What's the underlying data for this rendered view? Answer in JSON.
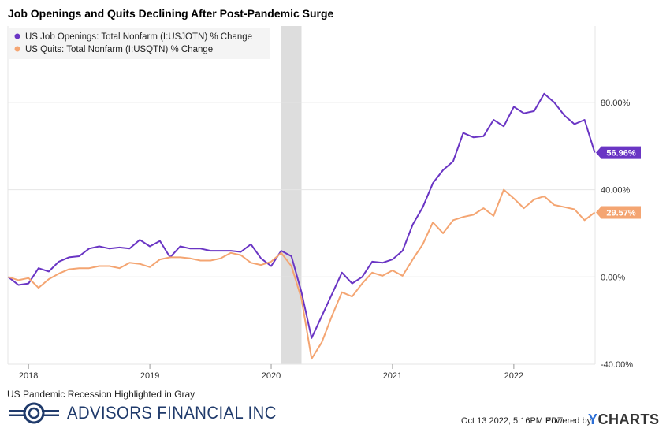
{
  "page": {
    "title": "Job Openings and Quits Declining After Post-Pandemic Surge",
    "footnote": "US Pandemic Recession Highlighted in Gray",
    "brand": "ADVISORS FINANCIAL INC",
    "timestamp": "Oct 13 2022, 5:16PM EDT.",
    "powered_by": "Powered by",
    "ycharts_y": "Y",
    "ycharts_rest": "CHARTS"
  },
  "chart_data": {
    "type": "line",
    "x_unit": "year",
    "xlim": [
      2017.83,
      2022.67
    ],
    "ylim": [
      -40,
      115
    ],
    "y_ticks": [
      -40,
      0,
      40,
      80
    ],
    "y_tick_labels": [
      "-40.00%",
      "0.00%",
      "40.00%",
      "80.00%"
    ],
    "x_ticks": [
      2018,
      2019,
      2020,
      2021,
      2022
    ],
    "x_tick_labels": [
      "2018",
      "2019",
      "2020",
      "2021",
      "2022"
    ],
    "grid": true,
    "legend_position": "top-left",
    "recession_band": {
      "start": 2020.08,
      "end": 2020.25,
      "color": "#dddddd"
    },
    "series": [
      {
        "name": "US Job Openings: Total Nonfarm (I:USJOTN) % Change",
        "color": "#6a35c4",
        "last_label": "56.96%",
        "points": [
          [
            2017.833,
            0
          ],
          [
            2017.917,
            -3.7
          ],
          [
            2018.0,
            -3
          ],
          [
            2018.083,
            4
          ],
          [
            2018.167,
            2.5
          ],
          [
            2018.25,
            7
          ],
          [
            2018.333,
            9
          ],
          [
            2018.417,
            9.5
          ],
          [
            2018.5,
            13
          ],
          [
            2018.583,
            14
          ],
          [
            2018.667,
            13
          ],
          [
            2018.75,
            13.5
          ],
          [
            2018.833,
            13
          ],
          [
            2018.917,
            17
          ],
          [
            2019.0,
            14
          ],
          [
            2019.083,
            16.5
          ],
          [
            2019.167,
            9
          ],
          [
            2019.25,
            14
          ],
          [
            2019.333,
            13
          ],
          [
            2019.417,
            13
          ],
          [
            2019.5,
            12
          ],
          [
            2019.583,
            12
          ],
          [
            2019.667,
            12
          ],
          [
            2019.75,
            11.5
          ],
          [
            2019.833,
            15
          ],
          [
            2019.917,
            8.5
          ],
          [
            2020.0,
            5
          ],
          [
            2020.083,
            12
          ],
          [
            2020.167,
            9.5
          ],
          [
            2020.25,
            -7
          ],
          [
            2020.333,
            -28
          ],
          [
            2020.417,
            -18
          ],
          [
            2020.5,
            -8
          ],
          [
            2020.583,
            2
          ],
          [
            2020.667,
            -3
          ],
          [
            2020.75,
            0
          ],
          [
            2020.833,
            7
          ],
          [
            2020.917,
            6.5
          ],
          [
            2021.0,
            8
          ],
          [
            2021.083,
            12
          ],
          [
            2021.167,
            24
          ],
          [
            2021.25,
            32
          ],
          [
            2021.333,
            43
          ],
          [
            2021.417,
            49
          ],
          [
            2021.5,
            53
          ],
          [
            2021.583,
            66
          ],
          [
            2021.667,
            64
          ],
          [
            2021.75,
            64.5
          ],
          [
            2021.833,
            72
          ],
          [
            2021.917,
            69
          ],
          [
            2022.0,
            78
          ],
          [
            2022.083,
            75
          ],
          [
            2022.167,
            76
          ],
          [
            2022.25,
            84
          ],
          [
            2022.333,
            80
          ],
          [
            2022.417,
            74
          ],
          [
            2022.5,
            70
          ],
          [
            2022.583,
            72
          ],
          [
            2022.667,
            56.96
          ]
        ]
      },
      {
        "name": "US Quits: Total Nonfarm (I:USQTN) % Change",
        "color": "#f4a572",
        "last_label": "29.57%",
        "points": [
          [
            2017.833,
            0
          ],
          [
            2017.917,
            -1.5
          ],
          [
            2018.0,
            -0.5
          ],
          [
            2018.083,
            -5
          ],
          [
            2018.167,
            -1
          ],
          [
            2018.25,
            1.5
          ],
          [
            2018.333,
            3.5
          ],
          [
            2018.417,
            4
          ],
          [
            2018.5,
            4
          ],
          [
            2018.583,
            5
          ],
          [
            2018.667,
            5
          ],
          [
            2018.75,
            4
          ],
          [
            2018.833,
            6.5
          ],
          [
            2018.917,
            6
          ],
          [
            2019.0,
            4.5
          ],
          [
            2019.083,
            8
          ],
          [
            2019.167,
            9
          ],
          [
            2019.25,
            9
          ],
          [
            2019.333,
            8.5
          ],
          [
            2019.417,
            7.5
          ],
          [
            2019.5,
            7.5
          ],
          [
            2019.583,
            8.5
          ],
          [
            2019.667,
            11
          ],
          [
            2019.75,
            10
          ],
          [
            2019.833,
            6.5
          ],
          [
            2019.917,
            5.5
          ],
          [
            2020.0,
            7
          ],
          [
            2020.083,
            11
          ],
          [
            2020.167,
            5
          ],
          [
            2020.25,
            -10
          ],
          [
            2020.333,
            -37.5
          ],
          [
            2020.417,
            -30
          ],
          [
            2020.5,
            -18
          ],
          [
            2020.583,
            -7
          ],
          [
            2020.667,
            -9
          ],
          [
            2020.75,
            -3
          ],
          [
            2020.833,
            2
          ],
          [
            2020.917,
            0.5
          ],
          [
            2021.0,
            3
          ],
          [
            2021.083,
            0.5
          ],
          [
            2021.167,
            8
          ],
          [
            2021.25,
            15
          ],
          [
            2021.333,
            25
          ],
          [
            2021.417,
            20
          ],
          [
            2021.5,
            26
          ],
          [
            2021.583,
            27.5
          ],
          [
            2021.667,
            28.5
          ],
          [
            2021.75,
            31.5
          ],
          [
            2021.833,
            28
          ],
          [
            2021.917,
            40
          ],
          [
            2022.0,
            36
          ],
          [
            2022.083,
            31.5
          ],
          [
            2022.167,
            35.5
          ],
          [
            2022.25,
            37
          ],
          [
            2022.333,
            33
          ],
          [
            2022.417,
            32
          ],
          [
            2022.5,
            31
          ],
          [
            2022.583,
            26
          ],
          [
            2022.667,
            29.57
          ]
        ]
      }
    ]
  }
}
